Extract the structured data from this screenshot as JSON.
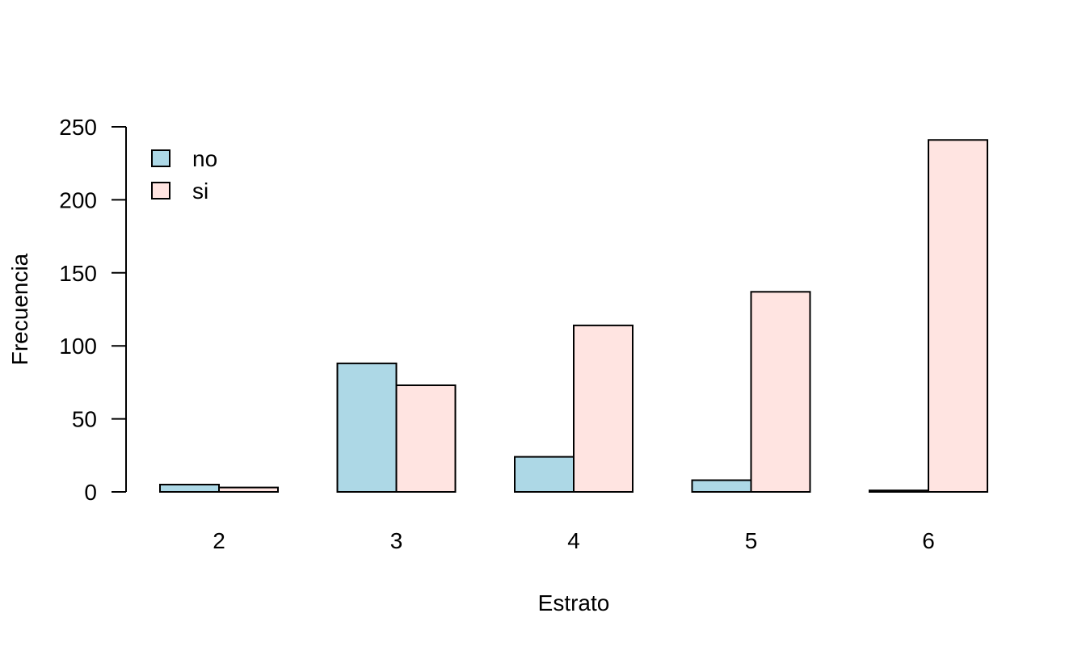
{
  "chart_data": {
    "type": "bar",
    "title": "",
    "xlabel": "Estrato",
    "ylabel": "Frecuencia",
    "categories": [
      "2",
      "3",
      "4",
      "5",
      "6"
    ],
    "series": [
      {
        "name": "no",
        "values": [
          5,
          88,
          24,
          8,
          1
        ],
        "color": "#ADD8E6"
      },
      {
        "name": "si",
        "values": [
          3,
          73,
          114,
          137,
          241
        ],
        "color": "#FFE4E1"
      }
    ],
    "ylim": [
      0,
      250
    ],
    "yticks": [
      "0",
      "50",
      "100",
      "150",
      "200",
      "250"
    ],
    "grid": false,
    "legend_position": "top-left"
  }
}
